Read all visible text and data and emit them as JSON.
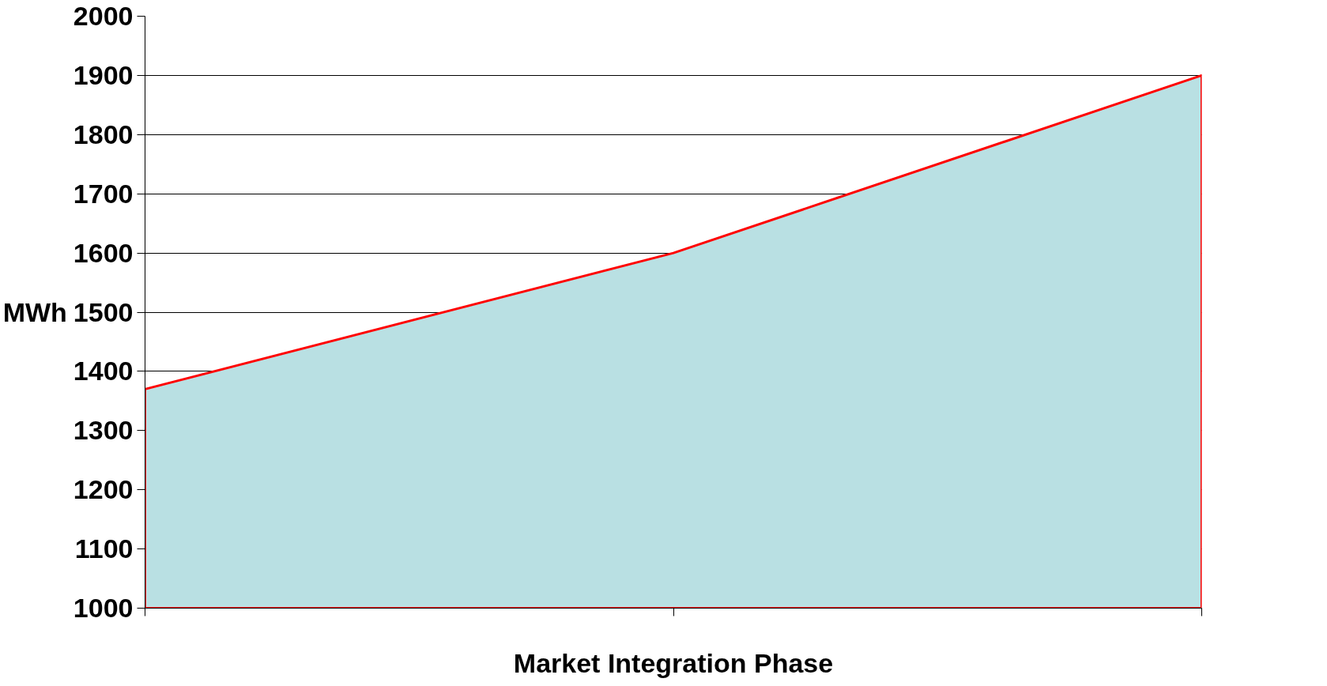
{
  "chart_data": {
    "type": "area",
    "xlabel": "Market Integration Phase",
    "ylabel": "MWh",
    "categories": [
      null,
      null,
      null
    ],
    "series": [
      {
        "color": "#b9e0e3",
        "values": [
          1370,
          1600,
          1900
        ]
      }
    ],
    "ylim": [
      1000,
      2000
    ],
    "yticks": [
      1000,
      1100,
      1200,
      1300,
      1400,
      1500,
      1600,
      1700,
      1800,
      1900,
      2000
    ],
    "grid": "y"
  }
}
